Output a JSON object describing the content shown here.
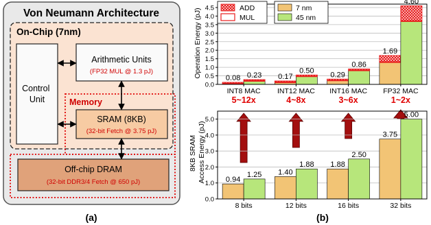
{
  "panel_a": {
    "title": "Von Neumann Architecture",
    "onchip_label": "On-Chip (7nm)",
    "memory_label": "Memory",
    "control_unit": [
      "Control",
      "Unit"
    ],
    "arithmetic": {
      "title": "Arithmetic Units",
      "detail": "(FP32 MUL @ 1.3 pJ)"
    },
    "sram": {
      "title": "SRAM (8KB)",
      "detail": "(32-bit Fetch @ 3.75 pJ)"
    },
    "dram": {
      "title": "Off-chip DRAM",
      "detail": "(32-bit DDR3/4 Fetch @ 650 pJ)"
    },
    "caption": "(a)",
    "colors": {
      "outer_bg": "#e9e9e9",
      "onchip_bg": "#fbe3d2",
      "box_bg": "#fafafa",
      "sram_bg": "#f7cba3",
      "dram_bg": "#e0a27a",
      "memory_dash": "#e00000",
      "detail_text": "#d00000"
    }
  },
  "panel_b": {
    "caption": "(b)",
    "colors": {
      "nm7": "#f2c475",
      "nm45": "#b7e67b",
      "mul": "#e81c1c",
      "add_hatch": "#e81c1c",
      "ratio_text": "#e00000",
      "arrow": "#a30f0f"
    },
    "ratios": [
      "5~12x",
      "4~8x",
      "3~6x",
      "1~2x"
    ]
  },
  "chart_data": [
    {
      "type": "bar",
      "ylabel": "Operation Energy (pJ)",
      "ylim": [
        0,
        4.7
      ],
      "yticks": [
        "0.0",
        "0.5",
        "1.0",
        "1.5",
        "2.0",
        "2.5",
        "3.0",
        "3.5",
        "4.0",
        "4.5"
      ],
      "categories": [
        "INT8 MAC",
        "INT12 MAC",
        "INT16 MAC",
        "FP32 MAC"
      ],
      "legend": [
        "ADD",
        "MUL",
        "7 nm",
        "45 nm"
      ],
      "legend_position": "top-left",
      "grid": "horizontal",
      "series": [
        {
          "name": "7 nm",
          "values": [
            0.08,
            0.17,
            0.29,
            1.69
          ],
          "labels": [
            "0.08",
            "0.17",
            "0.29",
            "1.69"
          ],
          "add": [
            0.04,
            0.05,
            0.06,
            0.39
          ]
        },
        {
          "name": "45 nm",
          "values": [
            0.23,
            0.5,
            0.86,
            4.6
          ],
          "labels": [
            "0.23",
            "0.50",
            "0.86",
            "4.60"
          ],
          "add": [
            0.03,
            0.03,
            0.04,
            0.9
          ]
        }
      ]
    },
    {
      "type": "bar",
      "ylabel": "8KB SRAM Access Energy (pJ)",
      "ylabel_lines": [
        "8KB SRAM",
        "Access Energy (pJ)"
      ],
      "ylim": [
        0,
        5.5
      ],
      "yticks": [
        "0.0",
        "1.0",
        "2.0",
        "3.0",
        "4.0",
        "5.0"
      ],
      "categories": [
        "8 bits",
        "12 bits",
        "16 bits",
        "32 bits"
      ],
      "grid": "horizontal",
      "series": [
        {
          "name": "7 nm",
          "values": [
            0.94,
            1.4,
            1.88,
            3.75
          ],
          "labels": [
            "0.94",
            "1.40",
            "1.88",
            "3.75"
          ]
        },
        {
          "name": "45 nm",
          "values": [
            1.25,
            1.88,
            2.5,
            5.0
          ],
          "labels": [
            "1.25",
            "1.88",
            "2.50",
            "5.00"
          ]
        }
      ]
    }
  ]
}
